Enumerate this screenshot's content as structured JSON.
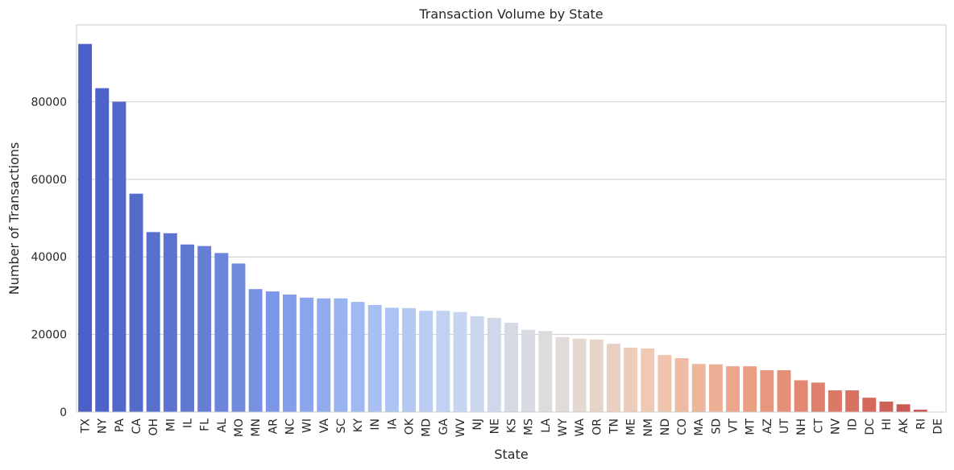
{
  "chart_data": {
    "type": "bar",
    "title": "Transaction Volume by State",
    "xlabel": "State",
    "ylabel": "Number of Transactions",
    "ylim": [
      0,
      99800
    ],
    "yticks": [
      0,
      20000,
      40000,
      60000,
      80000
    ],
    "grid": true,
    "categories": [
      "TX",
      "NY",
      "PA",
      "CA",
      "OH",
      "MI",
      "IL",
      "FL",
      "AL",
      "MO",
      "MN",
      "AR",
      "NC",
      "WI",
      "VA",
      "SC",
      "KY",
      "IN",
      "IA",
      "OK",
      "MD",
      "GA",
      "WV",
      "NJ",
      "NE",
      "KS",
      "MS",
      "LA",
      "WY",
      "WA",
      "OR",
      "TN",
      "ME",
      "NM",
      "ND",
      "CO",
      "MA",
      "SD",
      "VT",
      "MT",
      "AZ",
      "UT",
      "NH",
      "CT",
      "NV",
      "ID",
      "DC",
      "HI",
      "AK",
      "RI",
      "DE"
    ],
    "values": [
      94900,
      83500,
      80000,
      56300,
      46400,
      46100,
      43200,
      42800,
      41000,
      38300,
      31700,
      31100,
      30300,
      29500,
      29300,
      29300,
      28400,
      27600,
      26900,
      26800,
      26100,
      26100,
      25800,
      24700,
      24300,
      23000,
      21200,
      20900,
      19300,
      18900,
      18700,
      17600,
      16600,
      16400,
      14700,
      13900,
      12400,
      12300,
      11800,
      11800,
      10800,
      10800,
      8200,
      7600,
      5600,
      5600,
      3700,
      2700,
      2000,
      600,
      0
    ],
    "palette": "coolwarm",
    "colors": [
      "#4a5fc8",
      "#5e75d0",
      "#7e98e8",
      "#a5bdf3",
      "#c8d6f1",
      "#dfdcdb",
      "#f0c8b2",
      "#eaa084",
      "#db7563",
      "#c14b4b"
    ]
  }
}
